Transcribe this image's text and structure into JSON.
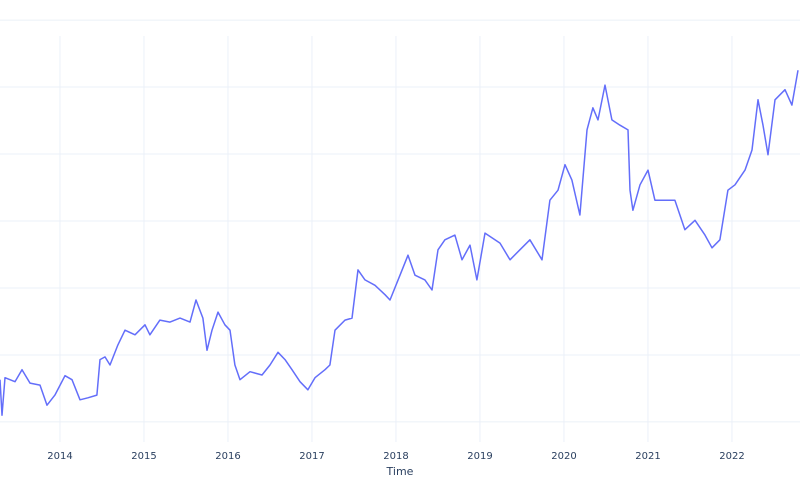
{
  "chart_data": {
    "type": "line",
    "xlabel": "Time",
    "x": [
      2013.286,
      2013.31,
      2013.345,
      2013.464,
      2013.548,
      2013.643,
      2013.762,
      2013.845,
      2013.94,
      2014.06,
      2014.143,
      2014.238,
      2014.333,
      2014.44,
      2014.476,
      2014.536,
      2014.595,
      2014.69,
      2014.774,
      2014.893,
      2015.012,
      2015.071,
      2015.19,
      2015.31,
      2015.429,
      2015.548,
      2015.619,
      2015.702,
      2015.75,
      2015.81,
      2015.881,
      2015.964,
      2016.024,
      2016.083,
      2016.143,
      2016.262,
      2016.405,
      2016.5,
      2016.595,
      2016.679,
      2016.762,
      2016.857,
      2016.952,
      2017.036,
      2017.155,
      2017.214,
      2017.274,
      2017.393,
      2017.476,
      2017.548,
      2017.631,
      2017.75,
      2017.869,
      2017.929,
      2018.048,
      2018.143,
      2018.226,
      2018.345,
      2018.429,
      2018.5,
      2018.583,
      2018.702,
      2018.786,
      2018.881,
      2018.964,
      2019.06,
      2019.238,
      2019.357,
      2019.476,
      2019.595,
      2019.738,
      2019.833,
      2019.929,
      2020.012,
      2020.095,
      2020.19,
      2020.274,
      2020.345,
      2020.405,
      2020.488,
      2020.571,
      2020.667,
      2020.762,
      2020.786,
      2020.821,
      2020.905,
      2021.0,
      2021.083,
      2021.202,
      2021.321,
      2021.44,
      2021.56,
      2021.679,
      2021.762,
      2021.857,
      2021.952,
      2022.036,
      2022.155,
      2022.238,
      2022.31,
      2022.369,
      2022.429,
      2022.512,
      2022.631,
      2022.714,
      2022.786
    ],
    "series": [
      {
        "color": "#636efa",
        "values": [
          6.3,
          1.0,
          6.6,
          6.0,
          7.8,
          5.8,
          5.5,
          2.5,
          4.0,
          6.9,
          6.3,
          3.3,
          3.6,
          4.0,
          9.3,
          9.7,
          8.5,
          11.5,
          13.7,
          13.0,
          14.5,
          13.0,
          15.2,
          14.9,
          15.5,
          14.9,
          18.2,
          15.5,
          10.7,
          13.7,
          16.4,
          14.5,
          13.7,
          8.5,
          6.3,
          7.5,
          7.0,
          8.5,
          10.4,
          9.3,
          7.8,
          6.0,
          4.8,
          6.6,
          7.8,
          8.5,
          13.7,
          15.2,
          15.5,
          22.7,
          21.2,
          20.4,
          19.0,
          18.2,
          21.9,
          24.9,
          21.9,
          21.2,
          19.7,
          25.7,
          27.2,
          27.9,
          24.2,
          26.4,
          21.2,
          28.2,
          26.7,
          24.2,
          25.7,
          27.2,
          24.2,
          33.1,
          34.6,
          38.4,
          36.1,
          30.9,
          43.6,
          46.9,
          45.1,
          50.3,
          45.1,
          44.3,
          43.6,
          34.6,
          31.6,
          35.4,
          37.6,
          33.1,
          33.1,
          33.1,
          28.7,
          30.1,
          27.9,
          26.0,
          27.2,
          34.6,
          35.4,
          37.6,
          40.6,
          48.1,
          44.3,
          39.9,
          48.1,
          49.6,
          47.3,
          52.5
        ]
      }
    ],
    "xlim": [
      2013.286,
      2022.81
    ],
    "xticks": [
      2014,
      2015,
      2016,
      2017,
      2018,
      2019,
      2020,
      2021,
      2022
    ],
    "ylim": [
      -3,
      63
    ],
    "ygrid": [
      0,
      10,
      20,
      30,
      40,
      50,
      60
    ],
    "grid": true
  }
}
